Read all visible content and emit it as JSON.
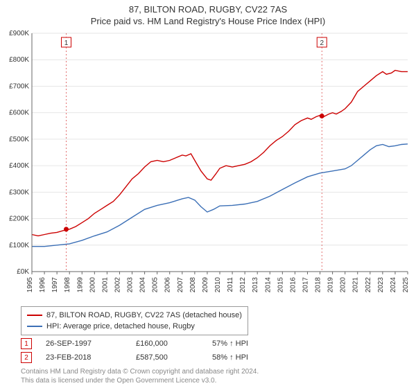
{
  "title_line1": "87, BILTON ROAD, RUGBY, CV22 7AS",
  "title_line2": "Price paid vs. HM Land Registry's House Price Index (HPI)",
  "chart": {
    "type": "line",
    "background_color": "#ffffff",
    "grid_color": "#e6e6e6",
    "axis_color": "#666666",
    "ylim": [
      0,
      900
    ],
    "ytick_step": 100,
    "y_prefix": "£",
    "y_suffix": "K",
    "xlim": [
      1995,
      2025
    ],
    "xtick_step": 1,
    "xtick_label_rotation": -90,
    "title_fontsize": 13,
    "axis_fontsize": 10,
    "line_width": 1.4,
    "series": [
      {
        "name": "87, BILTON ROAD, RUGBY, CV22 7AS (detached house)",
        "color": "#cc0000",
        "points": [
          [
            1995.0,
            140
          ],
          [
            1995.5,
            135
          ],
          [
            1996.0,
            140
          ],
          [
            1996.5,
            145
          ],
          [
            1997.0,
            148
          ],
          [
            1997.5,
            155
          ],
          [
            1998.0,
            160
          ],
          [
            1998.5,
            170
          ],
          [
            1999.0,
            185
          ],
          [
            1999.5,
            200
          ],
          [
            2000.0,
            220
          ],
          [
            2000.5,
            235
          ],
          [
            2001.0,
            250
          ],
          [
            2001.5,
            265
          ],
          [
            2002.0,
            290
          ],
          [
            2002.5,
            320
          ],
          [
            2003.0,
            350
          ],
          [
            2003.5,
            370
          ],
          [
            2004.0,
            395
          ],
          [
            2004.5,
            415
          ],
          [
            2005.0,
            420
          ],
          [
            2005.5,
            415
          ],
          [
            2006.0,
            420
          ],
          [
            2006.5,
            430
          ],
          [
            2007.0,
            440
          ],
          [
            2007.3,
            437
          ],
          [
            2007.7,
            445
          ],
          [
            2008.0,
            420
          ],
          [
            2008.5,
            380
          ],
          [
            2009.0,
            350
          ],
          [
            2009.3,
            345
          ],
          [
            2009.7,
            370
          ],
          [
            2010.0,
            390
          ],
          [
            2010.5,
            400
          ],
          [
            2011.0,
            395
          ],
          [
            2011.5,
            400
          ],
          [
            2012.0,
            405
          ],
          [
            2012.5,
            415
          ],
          [
            2013.0,
            430
          ],
          [
            2013.5,
            450
          ],
          [
            2014.0,
            475
          ],
          [
            2014.5,
            495
          ],
          [
            2015.0,
            510
          ],
          [
            2015.5,
            530
          ],
          [
            2016.0,
            555
          ],
          [
            2016.5,
            570
          ],
          [
            2017.0,
            580
          ],
          [
            2017.3,
            575
          ],
          [
            2017.7,
            585
          ],
          [
            2018.0,
            590
          ],
          [
            2018.3,
            585
          ],
          [
            2018.7,
            595
          ],
          [
            2019.0,
            600
          ],
          [
            2019.3,
            595
          ],
          [
            2019.7,
            605
          ],
          [
            2020.0,
            615
          ],
          [
            2020.5,
            640
          ],
          [
            2021.0,
            680
          ],
          [
            2021.5,
            700
          ],
          [
            2022.0,
            720
          ],
          [
            2022.5,
            740
          ],
          [
            2023.0,
            755
          ],
          [
            2023.3,
            745
          ],
          [
            2023.7,
            750
          ],
          [
            2024.0,
            760
          ],
          [
            2024.5,
            755
          ],
          [
            2025.0,
            755
          ]
        ]
      },
      {
        "name": "HPI: Average price, detached house, Rugby",
        "color": "#3b6fb6",
        "points": [
          [
            1995.0,
            95
          ],
          [
            1996.0,
            95
          ],
          [
            1997.0,
            100
          ],
          [
            1998.0,
            105
          ],
          [
            1999.0,
            118
          ],
          [
            2000.0,
            135
          ],
          [
            2001.0,
            150
          ],
          [
            2002.0,
            175
          ],
          [
            2003.0,
            205
          ],
          [
            2004.0,
            235
          ],
          [
            2005.0,
            250
          ],
          [
            2006.0,
            260
          ],
          [
            2007.0,
            275
          ],
          [
            2007.5,
            280
          ],
          [
            2008.0,
            270
          ],
          [
            2008.5,
            245
          ],
          [
            2009.0,
            225
          ],
          [
            2009.5,
            235
          ],
          [
            2010.0,
            248
          ],
          [
            2011.0,
            250
          ],
          [
            2012.0,
            255
          ],
          [
            2013.0,
            265
          ],
          [
            2014.0,
            285
          ],
          [
            2015.0,
            310
          ],
          [
            2016.0,
            335
          ],
          [
            2017.0,
            358
          ],
          [
            2018.0,
            372
          ],
          [
            2019.0,
            380
          ],
          [
            2020.0,
            388
          ],
          [
            2020.5,
            400
          ],
          [
            2021.0,
            420
          ],
          [
            2021.5,
            440
          ],
          [
            2022.0,
            460
          ],
          [
            2022.5,
            475
          ],
          [
            2023.0,
            480
          ],
          [
            2023.5,
            472
          ],
          [
            2024.0,
            475
          ],
          [
            2024.5,
            480
          ],
          [
            2025.0,
            482
          ]
        ]
      }
    ],
    "sale_markers": [
      {
        "label": "1",
        "x": 1997.74,
        "y": 160,
        "color": "#cc0000",
        "vline_color": "#cc0000"
      },
      {
        "label": "2",
        "x": 2018.15,
        "y": 587.5,
        "color": "#cc0000",
        "vline_color": "#cc0000"
      }
    ]
  },
  "legend_items": [
    {
      "color": "#cc0000",
      "label": "87, BILTON ROAD, RUGBY, CV22 7AS (detached house)"
    },
    {
      "color": "#3b6fb6",
      "label": "HPI: Average price, detached house, Rugby"
    }
  ],
  "sales_rows": [
    {
      "marker": "1",
      "date": "26-SEP-1997",
      "price": "£160,000",
      "pct": "57% ↑ HPI"
    },
    {
      "marker": "2",
      "date": "23-FEB-2018",
      "price": "£587,500",
      "pct": "58% ↑ HPI"
    }
  ],
  "footer_line1": "Contains HM Land Registry data © Crown copyright and database right 2024.",
  "footer_line2": "This data is licensed under the Open Government Licence v3.0."
}
